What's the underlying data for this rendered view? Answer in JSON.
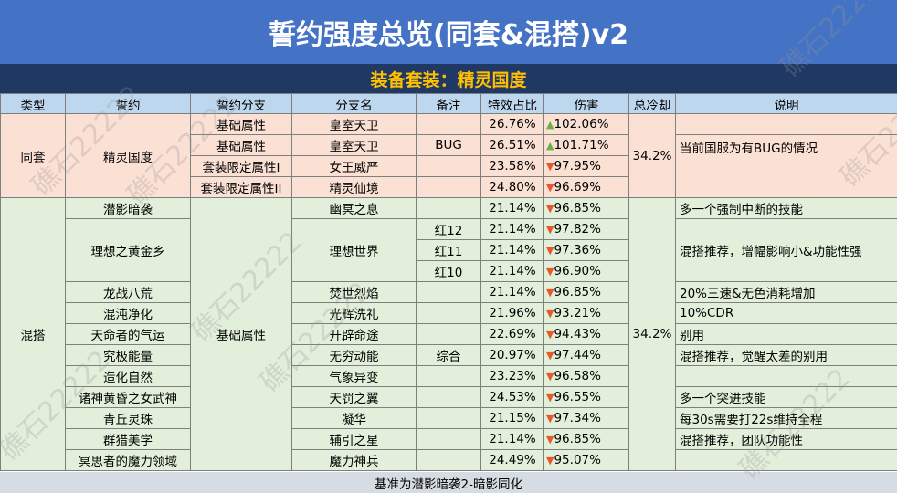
{
  "title": "誓约强度总览(同套&混搭)v2",
  "subtitle": "装备套装：精灵国度",
  "headers": [
    "类型",
    "誓约",
    "誓约分支",
    "分支名",
    "备注",
    "特效占比",
    "伤害",
    "总冷却",
    "说明"
  ],
  "watermark": "礁石22222",
  "arrow_up_color": "#70ad47",
  "arrow_down_color": "#e8582b",
  "tongtao": {
    "type": "同套",
    "oath": "精灵国度",
    "cooldown": "34.2%",
    "rows": [
      {
        "branch": "基础属性",
        "name": "皇室天卫",
        "note": "",
        "pct": "26.76%",
        "dir": "up",
        "dmg": "102.06%"
      },
      {
        "branch": "基础属性",
        "name": "皇室天卫",
        "note": "BUG",
        "pct": "26.51%",
        "dir": "up",
        "dmg": "101.71%"
      },
      {
        "branch": "套装限定属性I",
        "name": "女王威严",
        "note": "",
        "pct": "23.58%",
        "dir": "down",
        "dmg": "97.95%"
      },
      {
        "branch": "套装限定属性II",
        "name": "精灵仙境",
        "note": "",
        "pct": "24.80%",
        "dir": "down",
        "dmg": "96.69%"
      }
    ],
    "desc": "当前国服为有BUG的情况"
  },
  "hunda": {
    "type": "混搭",
    "branch": "基础属性",
    "cooldown": "34.2%",
    "oaths": [
      "潜影暗袭",
      "理想之黄金乡",
      "龙战八荒",
      "混沌净化",
      "天命者的气运",
      "究极能量",
      "造化自然",
      "诸神黄昏之女武神",
      "青丘灵珠",
      "群猎美学",
      "冥思者的魔力领域"
    ],
    "names": [
      "幽冥之息",
      "理想世界",
      "焚世烈焰",
      "光辉洗礼",
      "开辟命途",
      "无穷动能",
      "气象异变",
      "天罚之翼",
      "凝华",
      "辅引之星",
      "魔力神兵"
    ],
    "notes": [
      "红12",
      "红11",
      "红10",
      "综合"
    ],
    "pcts": [
      "21.14%",
      "21.14%",
      "21.14%",
      "21.14%",
      "21.14%",
      "21.96%",
      "22.69%",
      "20.97%",
      "23.23%",
      "24.53%",
      "21.15%",
      "21.14%",
      "24.49%"
    ],
    "dmgs": [
      "96.85%",
      "97.82%",
      "97.36%",
      "96.90%",
      "96.85%",
      "93.21%",
      "94.43%",
      "97.44%",
      "96.58%",
      "96.55%",
      "97.34%",
      "96.85%",
      "95.07%"
    ],
    "descs": [
      "多一个强制中断的技能",
      "混搭推荐，增幅影响小&功能性强",
      "20%三速&无色消耗增加",
      "10%CDR",
      "别用",
      "混搭推荐，觉醒太差的别用",
      "多一个突进技能",
      "每30s需要打22s维持全程",
      "混搭推荐，团队功能性"
    ]
  },
  "footer": "基准为潜影暗袭2-暗影同化"
}
